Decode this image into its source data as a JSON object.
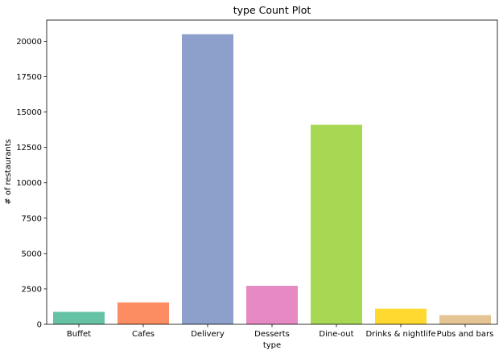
{
  "chart_data": {
    "type": "bar",
    "title": "type Count Plot",
    "xlabel": "type",
    "ylabel": "# of restaurants",
    "categories": [
      "Buffet",
      "Cafes",
      "Delivery",
      "Desserts",
      "Dine-out",
      "Drinks & nightlife",
      "Pubs and bars"
    ],
    "values": [
      880,
      1550,
      20500,
      2720,
      14100,
      1100,
      650
    ],
    "colors": [
      "#66c2a5",
      "#fc8d62",
      "#8da0cb",
      "#e78ac3",
      "#a6d854",
      "#ffd92f",
      "#e5c494"
    ],
    "ylim": [
      0,
      21500
    ],
    "yticks": [
      0,
      2500,
      5000,
      7500,
      10000,
      12500,
      15000,
      17500,
      20000
    ],
    "grid": false,
    "legend": "none"
  }
}
